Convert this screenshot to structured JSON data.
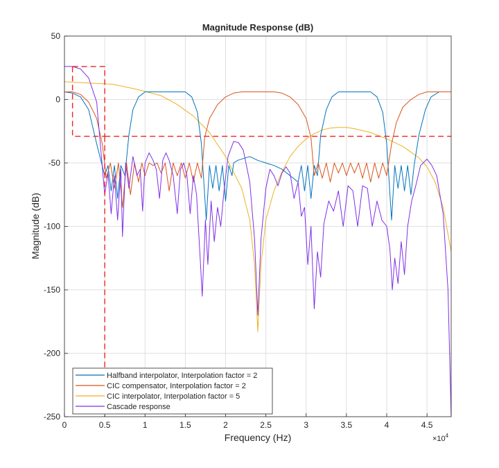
{
  "chart_data": {
    "type": "line",
    "title": "Magnitude Response (dB)",
    "xlabel": "Frequency (Hz)",
    "ylabel": "Magnitude (dB)",
    "x_exponent_label": "×10",
    "x_exponent_power": "4",
    "xlim": [
      0,
      48000
    ],
    "ylim": [
      -250,
      50
    ],
    "xticks": [
      {
        "value": 0,
        "label": "0"
      },
      {
        "value": 5000,
        "label": "0.5"
      },
      {
        "value": 10000,
        "label": "1"
      },
      {
        "value": 15000,
        "label": "1.5"
      },
      {
        "value": 20000,
        "label": "2"
      },
      {
        "value": 25000,
        "label": "2.5"
      },
      {
        "value": 30000,
        "label": "3"
      },
      {
        "value": 35000,
        "label": "3.5"
      },
      {
        "value": 40000,
        "label": "4"
      },
      {
        "value": 45000,
        "label": "4.5"
      }
    ],
    "yticks": [
      {
        "value": 50,
        "label": "50"
      },
      {
        "value": 0,
        "label": "0"
      },
      {
        "value": -50,
        "label": "-50"
      },
      {
        "value": -100,
        "label": "-100"
      },
      {
        "value": -150,
        "label": "-150"
      },
      {
        "value": -200,
        "label": "-200"
      },
      {
        "value": -250,
        "label": "-250"
      }
    ],
    "grid": true,
    "legend_position": "bottom-left",
    "series": [
      {
        "name": "Halfband interpolator, Interpolation factor = 2",
        "color": "#0072BD",
        "points": [
          [
            0,
            6
          ],
          [
            1000,
            5
          ],
          [
            2000,
            2
          ],
          [
            3000,
            -8
          ],
          [
            4000,
            -35
          ],
          [
            5000,
            -60
          ],
          [
            5400,
            -52
          ],
          [
            5800,
            -72
          ],
          [
            6200,
            -52
          ],
          [
            6600,
            -78
          ],
          [
            7000,
            -52
          ],
          [
            7500,
            -60
          ],
          [
            8000,
            -28
          ],
          [
            8500,
            -8
          ],
          [
            9200,
            2
          ],
          [
            10000,
            6
          ],
          [
            11000,
            6
          ],
          [
            14000,
            6
          ],
          [
            15000,
            6
          ],
          [
            15800,
            2
          ],
          [
            16500,
            -10
          ],
          [
            17000,
            -35
          ],
          [
            17600,
            -95
          ],
          [
            18000,
            -52
          ],
          [
            18400,
            -70
          ],
          [
            18800,
            -52
          ],
          [
            19200,
            -72
          ],
          [
            19600,
            -52
          ],
          [
            20000,
            -80
          ],
          [
            20400,
            -52
          ],
          [
            20800,
            -60
          ],
          [
            21000,
            -50
          ],
          [
            21500,
            -48
          ],
          [
            23000,
            -45
          ],
          [
            24000,
            -48
          ],
          [
            25000,
            -50
          ],
          [
            26000,
            -52
          ],
          [
            27000,
            -55
          ],
          [
            28000,
            -60
          ],
          [
            29000,
            -65
          ],
          [
            29400,
            -52
          ],
          [
            29800,
            -72
          ],
          [
            30200,
            -52
          ],
          [
            30600,
            -78
          ],
          [
            31000,
            -52
          ],
          [
            31400,
            -60
          ],
          [
            31800,
            -28
          ],
          [
            32500,
            -8
          ],
          [
            33200,
            2
          ],
          [
            34000,
            6
          ],
          [
            38000,
            6
          ],
          [
            38800,
            2
          ],
          [
            39500,
            -10
          ],
          [
            40000,
            -35
          ],
          [
            40600,
            -95
          ],
          [
            41000,
            -52
          ],
          [
            41400,
            -70
          ],
          [
            41800,
            -52
          ],
          [
            42200,
            -72
          ],
          [
            42600,
            -52
          ],
          [
            43000,
            -75
          ],
          [
            43400,
            -52
          ],
          [
            44000,
            -28
          ],
          [
            44800,
            -8
          ],
          [
            45500,
            2
          ],
          [
            46500,
            6
          ],
          [
            48000,
            6
          ]
        ]
      },
      {
        "name": "CIC compensator, Interpolation factor = 2",
        "color": "#D95319",
        "points": [
          [
            0,
            6
          ],
          [
            1000,
            6
          ],
          [
            2000,
            4
          ],
          [
            3000,
            -2
          ],
          [
            4000,
            -15
          ],
          [
            4700,
            -35
          ],
          [
            5200,
            -62
          ],
          [
            5700,
            -50
          ],
          [
            6200,
            -70
          ],
          [
            6700,
            -50
          ],
          [
            7200,
            -85
          ],
          [
            7700,
            -50
          ],
          [
            8200,
            -75
          ],
          [
            8700,
            -50
          ],
          [
            9200,
            -65
          ],
          [
            9600,
            -50
          ],
          [
            10000,
            -60
          ],
          [
            10500,
            -50
          ],
          [
            11000,
            -52
          ],
          [
            11500,
            -50
          ],
          [
            12000,
            -58
          ],
          [
            12500,
            -50
          ],
          [
            13000,
            -72
          ],
          [
            13500,
            -50
          ],
          [
            14000,
            -60
          ],
          [
            14500,
            -50
          ],
          [
            15000,
            -62
          ],
          [
            15500,
            -50
          ],
          [
            16000,
            -65
          ],
          [
            16500,
            -50
          ],
          [
            17000,
            -62
          ],
          [
            17400,
            -30
          ],
          [
            18000,
            -15
          ],
          [
            19000,
            -4
          ],
          [
            20000,
            2
          ],
          [
            21000,
            5
          ],
          [
            22000,
            6
          ],
          [
            26000,
            6
          ],
          [
            27000,
            5
          ],
          [
            28000,
            2
          ],
          [
            29000,
            -4
          ],
          [
            30000,
            -15
          ],
          [
            30600,
            -30
          ],
          [
            31000,
            -60
          ],
          [
            31500,
            -50
          ],
          [
            32000,
            -62
          ],
          [
            32500,
            -50
          ],
          [
            33000,
            -65
          ],
          [
            33500,
            -50
          ],
          [
            34000,
            -58
          ],
          [
            34500,
            -50
          ],
          [
            35000,
            -60
          ],
          [
            35500,
            -50
          ],
          [
            36000,
            -58
          ],
          [
            36500,
            -50
          ],
          [
            37000,
            -62
          ],
          [
            37500,
            -50
          ],
          [
            38000,
            -65
          ],
          [
            38500,
            -50
          ],
          [
            39000,
            -62
          ],
          [
            39500,
            -50
          ],
          [
            40000,
            -60
          ],
          [
            40600,
            -35
          ],
          [
            41200,
            -18
          ],
          [
            42000,
            -6
          ],
          [
            43000,
            0
          ],
          [
            44000,
            4
          ],
          [
            45000,
            6
          ],
          [
            48000,
            6
          ]
        ]
      },
      {
        "name": "CIC interpolator, Interpolation factor = 5",
        "color": "#EDB120",
        "points": [
          [
            0,
            14
          ],
          [
            3000,
            13
          ],
          [
            6000,
            12
          ],
          [
            9000,
            8
          ],
          [
            12000,
            3
          ],
          [
            14000,
            -4
          ],
          [
            16000,
            -13
          ],
          [
            18000,
            -26
          ],
          [
            20000,
            -45
          ],
          [
            22000,
            -70
          ],
          [
            23000,
            -95
          ],
          [
            23600,
            -130
          ],
          [
            24000,
            -183
          ],
          [
            24400,
            -130
          ],
          [
            25000,
            -95
          ],
          [
            26000,
            -72
          ],
          [
            27000,
            -57
          ],
          [
            28000,
            -45
          ],
          [
            29000,
            -37
          ],
          [
            30000,
            -31
          ],
          [
            31000,
            -27
          ],
          [
            32000,
            -24
          ],
          [
            33000,
            -22.5
          ],
          [
            34000,
            -22
          ],
          [
            35000,
            -22
          ],
          [
            36000,
            -23
          ],
          [
            38000,
            -26
          ],
          [
            40000,
            -31
          ],
          [
            42000,
            -37
          ],
          [
            44000,
            -46
          ],
          [
            45000,
            -53
          ],
          [
            46000,
            -65
          ],
          [
            47000,
            -85
          ],
          [
            48000,
            -120
          ]
        ]
      },
      {
        "name": "Cascade response",
        "color": "#7E2FE8",
        "points": [
          [
            0,
            26
          ],
          [
            1000,
            26
          ],
          [
            2000,
            24
          ],
          [
            3000,
            17
          ],
          [
            4000,
            -2
          ],
          [
            5000,
            -75
          ],
          [
            5400,
            -58
          ],
          [
            5800,
            -90
          ],
          [
            6200,
            -60
          ],
          [
            6600,
            -95
          ],
          [
            7000,
            -55
          ],
          [
            7200,
            -108
          ],
          [
            7600,
            -50
          ],
          [
            8000,
            -70
          ],
          [
            8500,
            -45
          ],
          [
            9000,
            -60
          ],
          [
            9400,
            -55
          ],
          [
            9700,
            -88
          ],
          [
            10000,
            -50
          ],
          [
            10500,
            -42
          ],
          [
            11000,
            -48
          ],
          [
            11400,
            -55
          ],
          [
            11800,
            -78
          ],
          [
            12200,
            -48
          ],
          [
            12600,
            -42
          ],
          [
            13000,
            -48
          ],
          [
            13500,
            -60
          ],
          [
            14000,
            -90
          ],
          [
            14400,
            -55
          ],
          [
            14800,
            -50
          ],
          [
            15200,
            -60
          ],
          [
            15600,
            -90
          ],
          [
            16000,
            -60
          ],
          [
            16400,
            -75
          ],
          [
            16800,
            -120
          ],
          [
            17100,
            -155
          ],
          [
            17500,
            -95
          ],
          [
            17800,
            -130
          ],
          [
            18200,
            -80
          ],
          [
            18600,
            -112
          ],
          [
            19000,
            -85
          ],
          [
            19400,
            -100
          ],
          [
            19800,
            -72
          ],
          [
            20300,
            -45
          ],
          [
            21000,
            -33
          ],
          [
            21600,
            -34
          ],
          [
            22200,
            -40
          ],
          [
            23000,
            -65
          ],
          [
            23600,
            -110
          ],
          [
            24000,
            -170
          ],
          [
            24400,
            -110
          ],
          [
            25000,
            -70
          ],
          [
            25500,
            -55
          ],
          [
            26000,
            -60
          ],
          [
            26500,
            -68
          ],
          [
            27000,
            -58
          ],
          [
            27500,
            -53
          ],
          [
            28000,
            -58
          ],
          [
            28500,
            -78
          ],
          [
            29000,
            -65
          ],
          [
            29400,
            -92
          ],
          [
            29800,
            -85
          ],
          [
            30200,
            -130
          ],
          [
            30600,
            -100
          ],
          [
            31000,
            -165
          ],
          [
            31400,
            -120
          ],
          [
            31800,
            -140
          ],
          [
            32200,
            -98
          ],
          [
            32800,
            -80
          ],
          [
            33400,
            -88
          ],
          [
            34000,
            -72
          ],
          [
            34600,
            -100
          ],
          [
            35200,
            -68
          ],
          [
            35800,
            -72
          ],
          [
            36400,
            -100
          ],
          [
            37000,
            -68
          ],
          [
            37600,
            -70
          ],
          [
            38200,
            -100
          ],
          [
            38800,
            -80
          ],
          [
            39400,
            -95
          ],
          [
            40000,
            -100
          ],
          [
            40400,
            -118
          ],
          [
            40700,
            -150
          ],
          [
            41000,
            -125
          ],
          [
            41400,
            -145
          ],
          [
            41800,
            -112
          ],
          [
            42200,
            -138
          ],
          [
            42600,
            -100
          ],
          [
            43100,
            -80
          ],
          [
            43600,
            -68
          ],
          [
            44200,
            -52
          ],
          [
            45000,
            -47
          ],
          [
            45600,
            -52
          ],
          [
            46200,
            -60
          ],
          [
            47000,
            -90
          ],
          [
            47600,
            -150
          ],
          [
            48000,
            -250
          ]
        ]
      }
    ],
    "annotations": [
      {
        "name": "red-dashed-box",
        "color": "#EE2222",
        "x": [
          1000,
          5000
        ],
        "y": [
          26,
          -29
        ]
      },
      {
        "name": "red-dashed-stopband-line",
        "color": "#EE2222",
        "x": [
          5000,
          48000
        ],
        "y": -29
      },
      {
        "name": "red-dashed-stopband-edge",
        "color": "#EE2222",
        "x": 5000,
        "y": [
          -29,
          -250
        ]
      }
    ]
  }
}
